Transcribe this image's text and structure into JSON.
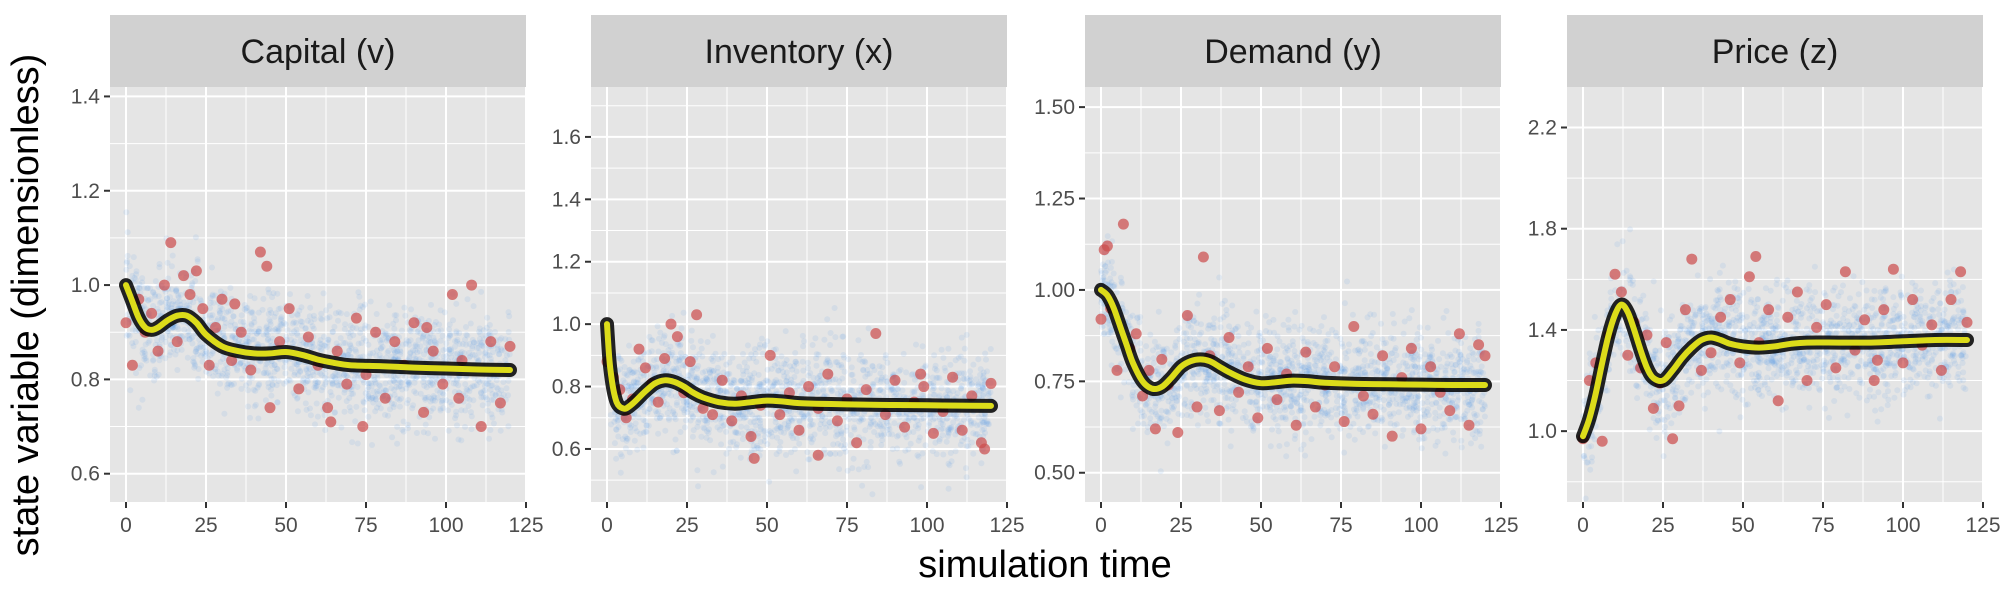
{
  "figure": {
    "xlabel": "simulation time",
    "ylabel": "state variable (dimensionless)"
  },
  "colors": {
    "panel_bg": "#e5e5e5",
    "grid": "#ffffff",
    "strip_bg": "#d1d1d1",
    "cloud": "#5b9be8",
    "observations": "#cc4e4e",
    "ensemble": "#000000",
    "mean_fill": "#dcdc1a",
    "mean_outline": "#000000"
  },
  "chart_data": [
    {
      "type": "scatter",
      "title": "Capital (v)",
      "xlim": [
        -5,
        125
      ],
      "ylim": [
        0.54,
        1.42
      ],
      "x_ticks": [
        0,
        25,
        50,
        75,
        100,
        125
      ],
      "y_ticks": [
        0.6,
        0.8,
        1.0,
        1.2,
        1.4
      ],
      "y_tick_labels": [
        "0.6",
        "0.8",
        "1.0",
        "1.2",
        "1.4"
      ],
      "grid": true,
      "mean_curve": {
        "x": [
          0,
          2,
          4,
          6,
          8,
          10,
          13,
          16,
          19,
          22,
          25,
          30,
          35,
          40,
          45,
          50,
          55,
          60,
          65,
          70,
          80,
          90,
          100,
          110,
          120
        ],
        "y": [
          1.0,
          0.965,
          0.93,
          0.91,
          0.905,
          0.91,
          0.925,
          0.935,
          0.935,
          0.92,
          0.895,
          0.87,
          0.86,
          0.855,
          0.855,
          0.858,
          0.852,
          0.842,
          0.835,
          0.83,
          0.828,
          0.825,
          0.823,
          0.821,
          0.82
        ]
      },
      "observations": {
        "x": [
          0,
          2,
          4,
          6,
          8,
          10,
          12,
          14,
          16,
          18,
          20,
          22,
          24,
          26,
          28,
          30,
          33,
          36,
          39,
          42,
          45,
          48,
          51,
          54,
          57,
          60,
          63,
          66,
          69,
          72,
          75,
          78,
          81,
          84,
          87,
          90,
          93,
          96,
          99,
          102,
          105,
          108,
          111,
          114,
          117,
          120,
          34,
          44,
          64,
          74,
          94,
          104
        ],
        "y": [
          0.92,
          0.83,
          0.97,
          0.9,
          0.94,
          0.86,
          1.0,
          1.09,
          0.88,
          1.02,
          0.98,
          1.03,
          0.95,
          0.83,
          0.91,
          0.97,
          0.84,
          0.9,
          0.82,
          1.07,
          0.74,
          0.88,
          0.95,
          0.78,
          0.89,
          0.83,
          0.74,
          0.86,
          0.79,
          0.93,
          0.81,
          0.9,
          0.76,
          0.88,
          0.83,
          0.92,
          0.73,
          0.86,
          0.79,
          0.98,
          0.84,
          1.0,
          0.7,
          0.88,
          0.75,
          0.87,
          0.96,
          1.04,
          0.71,
          0.7,
          0.91,
          0.76
        ]
      }
    },
    {
      "type": "scatter",
      "title": "Inventory (x)",
      "xlim": [
        -5,
        125
      ],
      "ylim": [
        0.43,
        1.76
      ],
      "x_ticks": [
        0,
        25,
        50,
        75,
        100,
        125
      ],
      "y_ticks": [
        0.6,
        0.8,
        1.0,
        1.2,
        1.4,
        1.6
      ],
      "y_tick_labels": [
        "0.6",
        "0.8",
        "1.0",
        "1.2",
        "1.4",
        "1.6"
      ],
      "grid": true,
      "mean_curve": {
        "x": [
          0,
          0.5,
          1,
          2,
          3,
          4,
          5,
          6,
          8,
          10,
          12,
          15,
          18,
          21,
          24,
          27,
          30,
          35,
          40,
          45,
          50,
          55,
          60,
          70,
          80,
          90,
          100,
          110,
          120
        ],
        "y": [
          1.0,
          0.92,
          0.86,
          0.79,
          0.75,
          0.735,
          0.73,
          0.73,
          0.745,
          0.765,
          0.785,
          0.81,
          0.82,
          0.815,
          0.8,
          0.78,
          0.765,
          0.75,
          0.745,
          0.75,
          0.755,
          0.752,
          0.747,
          0.744,
          0.742,
          0.741,
          0.74,
          0.739,
          0.738
        ]
      },
      "observations": {
        "x": [
          0,
          2,
          4,
          6,
          8,
          10,
          12,
          14,
          16,
          18,
          20,
          22,
          24,
          26,
          28,
          30,
          33,
          36,
          39,
          42,
          45,
          48,
          51,
          54,
          57,
          60,
          63,
          66,
          69,
          72,
          75,
          78,
          81,
          84,
          87,
          90,
          93,
          96,
          99,
          102,
          105,
          108,
          111,
          114,
          117,
          120,
          46,
          66,
          98,
          118
        ],
        "y": [
          0.88,
          0.83,
          0.79,
          0.7,
          0.76,
          0.92,
          0.86,
          0.81,
          0.75,
          0.89,
          1.0,
          0.96,
          0.78,
          0.88,
          1.03,
          0.73,
          0.71,
          0.82,
          0.69,
          0.77,
          0.64,
          0.74,
          0.9,
          0.71,
          0.78,
          0.66,
          0.8,
          0.73,
          0.84,
          0.69,
          0.76,
          0.62,
          0.79,
          0.97,
          0.71,
          0.82,
          0.67,
          0.75,
          0.8,
          0.65,
          0.72,
          0.83,
          0.66,
          0.77,
          0.62,
          0.81,
          0.57,
          0.58,
          0.84,
          0.6
        ]
      }
    },
    {
      "type": "scatter",
      "title": "Demand (y)",
      "xlim": [
        -5,
        125
      ],
      "ylim": [
        0.42,
        1.555
      ],
      "x_ticks": [
        0,
        25,
        50,
        75,
        100,
        125
      ],
      "y_ticks": [
        0.5,
        0.75,
        1.0,
        1.25,
        1.5
      ],
      "y_tick_labels": [
        "0.50",
        "0.75",
        "1.00",
        "1.25",
        "1.50"
      ],
      "grid": true,
      "mean_curve": {
        "x": [
          0,
          2,
          4,
          6,
          8,
          10,
          13,
          16,
          19,
          22,
          25,
          28,
          31,
          34,
          37,
          40,
          45,
          50,
          55,
          60,
          65,
          70,
          80,
          90,
          100,
          110,
          120
        ],
        "y": [
          1.0,
          0.985,
          0.95,
          0.9,
          0.85,
          0.8,
          0.75,
          0.73,
          0.735,
          0.76,
          0.79,
          0.805,
          0.81,
          0.805,
          0.79,
          0.775,
          0.755,
          0.745,
          0.748,
          0.752,
          0.75,
          0.746,
          0.743,
          0.742,
          0.741,
          0.74,
          0.74
        ]
      },
      "observations": {
        "x": [
          0,
          1,
          2,
          3,
          5,
          7,
          9,
          11,
          13,
          15,
          17,
          19,
          21,
          24,
          27,
          30,
          32,
          34,
          37,
          40,
          43,
          46,
          49,
          52,
          55,
          58,
          61,
          64,
          67,
          70,
          73,
          76,
          79,
          82,
          85,
          88,
          91,
          94,
          97,
          100,
          103,
          106,
          109,
          112,
          115,
          118,
          120
        ],
        "y": [
          0.92,
          1.11,
          1.12,
          0.95,
          0.78,
          1.18,
          0.84,
          0.88,
          0.71,
          0.78,
          0.62,
          0.81,
          0.74,
          0.61,
          0.93,
          0.68,
          1.09,
          0.82,
          0.67,
          0.87,
          0.72,
          0.79,
          0.65,
          0.84,
          0.7,
          0.77,
          0.63,
          0.83,
          0.68,
          0.74,
          0.79,
          0.64,
          0.9,
          0.71,
          0.66,
          0.82,
          0.6,
          0.76,
          0.84,
          0.62,
          0.79,
          0.72,
          0.67,
          0.88,
          0.63,
          0.85,
          0.82
        ]
      }
    },
    {
      "type": "scatter",
      "title": "Price (z)",
      "xlim": [
        -5,
        125
      ],
      "ylim": [
        0.72,
        2.36
      ],
      "x_ticks": [
        0,
        25,
        50,
        75,
        100,
        125
      ],
      "y_ticks": [
        1.0,
        1.4,
        1.8,
        2.2
      ],
      "y_tick_labels": [
        "1.0",
        "1.4",
        "1.8",
        "2.2"
      ],
      "grid": true,
      "mean_curve": {
        "x": [
          0,
          2,
          4,
          6,
          8,
          10,
          12,
          14,
          16,
          18,
          20,
          22,
          25,
          28,
          31,
          34,
          37,
          40,
          43,
          46,
          50,
          55,
          60,
          65,
          70,
          80,
          90,
          100,
          110,
          120
        ],
        "y": [
          0.98,
          1.05,
          1.15,
          1.27,
          1.38,
          1.46,
          1.5,
          1.47,
          1.4,
          1.32,
          1.25,
          1.21,
          1.2,
          1.24,
          1.29,
          1.33,
          1.36,
          1.37,
          1.36,
          1.345,
          1.335,
          1.33,
          1.335,
          1.345,
          1.35,
          1.35,
          1.35,
          1.355,
          1.36,
          1.36
        ]
      },
      "observations": {
        "x": [
          0,
          2,
          4,
          6,
          8,
          10,
          12,
          14,
          16,
          18,
          20,
          22,
          24,
          26,
          28,
          30,
          32,
          34,
          37,
          40,
          43,
          46,
          49,
          52,
          55,
          58,
          61,
          64,
          67,
          70,
          73,
          76,
          79,
          82,
          85,
          88,
          91,
          94,
          97,
          100,
          103,
          106,
          109,
          112,
          115,
          118,
          120,
          54,
          92
        ],
        "y": [
          0.97,
          1.2,
          1.27,
          0.96,
          1.38,
          1.62,
          1.55,
          1.3,
          1.43,
          1.25,
          1.38,
          1.09,
          1.19,
          1.35,
          0.97,
          1.1,
          1.48,
          1.68,
          1.24,
          1.31,
          1.45,
          1.52,
          1.27,
          1.61,
          1.35,
          1.48,
          1.12,
          1.45,
          1.55,
          1.2,
          1.41,
          1.5,
          1.25,
          1.63,
          1.32,
          1.44,
          1.2,
          1.48,
          1.64,
          1.27,
          1.52,
          1.34,
          1.42,
          1.24,
          1.52,
          1.63,
          1.43,
          1.69,
          1.28
        ]
      }
    }
  ]
}
